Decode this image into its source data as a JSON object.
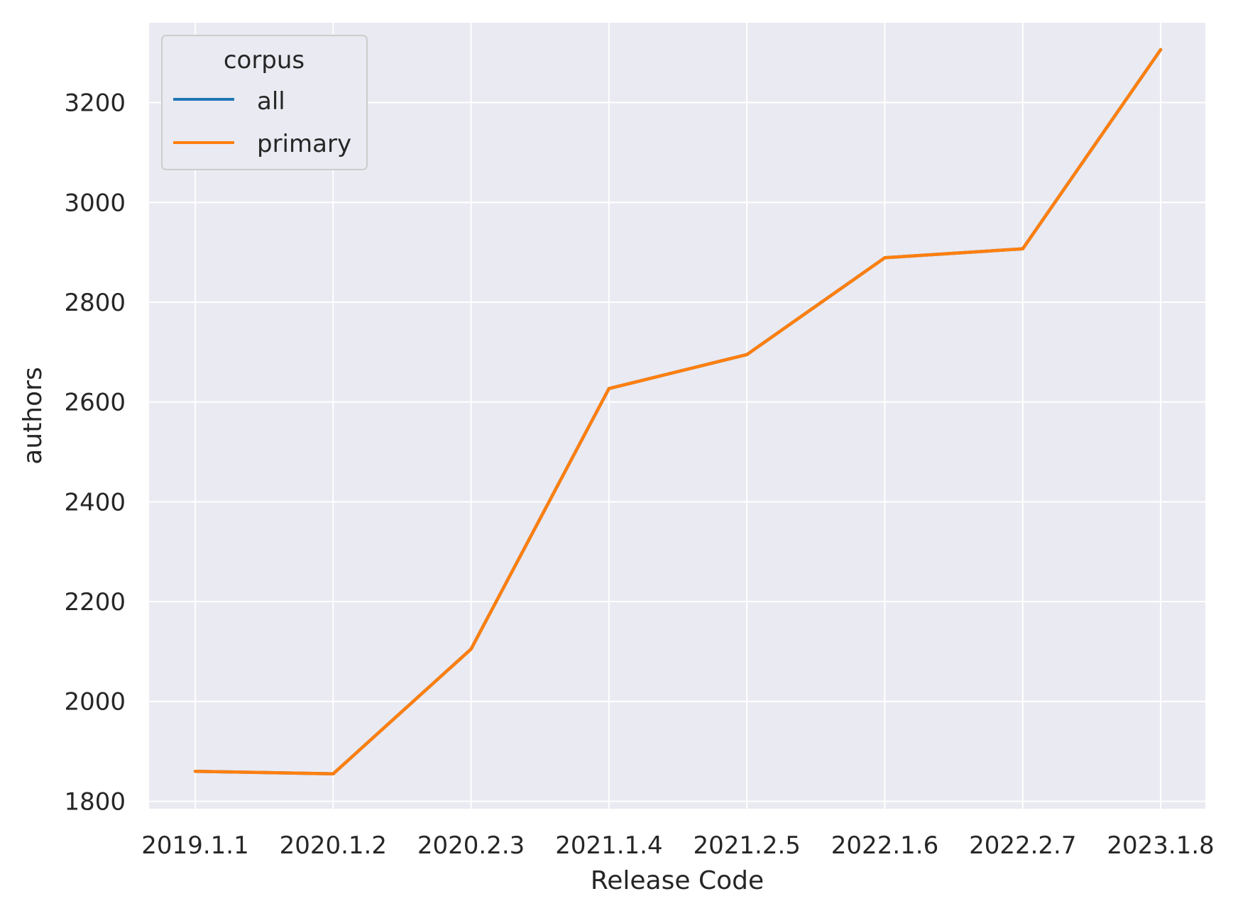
{
  "chart_data": {
    "type": "line",
    "title": "",
    "xlabel": "Release Code",
    "ylabel": "authors",
    "categories": [
      "2019.1.1",
      "2020.1.2",
      "2020.2.3",
      "2021.1.4",
      "2021.2.5",
      "2022.1.6",
      "2022.2.7",
      "2023.1.8"
    ],
    "yticks": [
      1800,
      2000,
      2200,
      2400,
      2600,
      2800,
      3000,
      3200
    ],
    "ylim": [
      1785,
      3360
    ],
    "grid": true,
    "legend": {
      "title": "corpus",
      "placement": "top-left"
    },
    "series": [
      {
        "name": "all",
        "color": "#1f77b4",
        "values": [
          1860,
          1855,
          2105,
          2627,
          2695,
          2889,
          2907,
          3306
        ]
      },
      {
        "name": "primary",
        "color": "#ff7f0e",
        "values": [
          1860,
          1855,
          2105,
          2627,
          2695,
          2889,
          2907,
          3306
        ]
      }
    ],
    "colors": {
      "plot_background": "#eaeaf2",
      "grid": "#ffffff",
      "text": "#262626"
    }
  }
}
